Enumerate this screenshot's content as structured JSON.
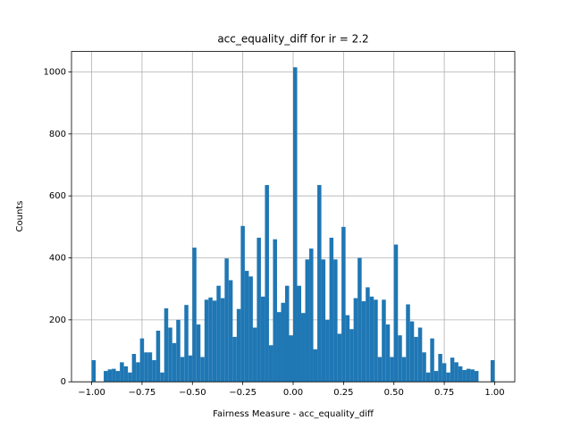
{
  "chart_data": {
    "type": "histogram",
    "title": "acc_equality_diff for ir = 2.2",
    "x_label": "Fairness Measure - acc_equality_diff",
    "y_label": "Counts",
    "color": "#1f77b4",
    "grid": true,
    "bins": [
      -1.0,
      -0.98,
      -0.96,
      -0.94,
      -0.92,
      -0.9,
      -0.88,
      -0.86,
      -0.84,
      -0.82,
      -0.8,
      -0.78,
      -0.76,
      -0.74,
      -0.72,
      -0.7,
      -0.68,
      -0.66,
      -0.64,
      -0.62,
      -0.6,
      -0.58,
      -0.56,
      -0.54,
      -0.52,
      -0.5,
      -0.48,
      -0.46,
      -0.44,
      -0.42,
      -0.4,
      -0.38,
      -0.36,
      -0.34,
      -0.32,
      -0.3,
      -0.28,
      -0.26,
      -0.24,
      -0.22,
      -0.2,
      -0.18,
      -0.16,
      -0.14,
      -0.12,
      -0.1,
      -0.08,
      -0.06,
      -0.04,
      -0.02,
      0,
      0.02,
      0.04,
      0.06,
      0.08,
      0.1,
      0.12,
      0.14,
      0.16,
      0.18,
      0.2,
      0.22,
      0.24,
      0.26,
      0.28,
      0.3,
      0.32,
      0.34,
      0.36,
      0.38,
      0.4,
      0.42,
      0.44,
      0.46,
      0.48,
      0.5,
      0.52,
      0.54,
      0.56,
      0.58,
      0.6,
      0.62,
      0.64,
      0.66,
      0.68,
      0.7,
      0.72,
      0.74,
      0.76,
      0.78,
      0.8,
      0.82,
      0.84,
      0.86,
      0.88,
      0.9,
      0.92,
      0.94,
      0.96,
      0.98,
      1.0
    ],
    "values": [
      70,
      0,
      0,
      35,
      40,
      42,
      35,
      63,
      50,
      30,
      90,
      63,
      140,
      95,
      95,
      70,
      165,
      30,
      237,
      175,
      125,
      200,
      80,
      248,
      85,
      433,
      185,
      80,
      265,
      272,
      262,
      310,
      270,
      398,
      328,
      145,
      235,
      503,
      358,
      340,
      175,
      465,
      275,
      635,
      118,
      460,
      225,
      255,
      310,
      150,
      1015,
      310,
      222,
      395,
      430,
      105,
      635,
      395,
      200,
      465,
      395,
      155,
      500,
      215,
      170,
      270,
      400,
      260,
      305,
      275,
      265,
      80,
      265,
      185,
      80,
      443,
      150,
      80,
      250,
      195,
      145,
      175,
      95,
      30,
      140,
      35,
      90,
      60,
      30,
      78,
      63,
      50,
      38,
      42,
      40,
      35,
      0,
      0,
      0,
      70
    ],
    "xlim": [
      -1.1,
      1.1
    ],
    "ylim": [
      0,
      1066
    ],
    "xticks": [
      {
        "value": -1.0,
        "label": "−1.00"
      },
      {
        "value": -0.75,
        "label": "−0.75"
      },
      {
        "value": -0.5,
        "label": "−0.50"
      },
      {
        "value": -0.25,
        "label": "−0.25"
      },
      {
        "value": 0,
        "label": "0.00"
      },
      {
        "value": 0.25,
        "label": "0.25"
      },
      {
        "value": 0.5,
        "label": "0.50"
      },
      {
        "value": 0.75,
        "label": "0.75"
      },
      {
        "value": 1.0,
        "label": "1.00"
      }
    ],
    "yticks": [
      0,
      200,
      400,
      600,
      800,
      1000
    ]
  }
}
